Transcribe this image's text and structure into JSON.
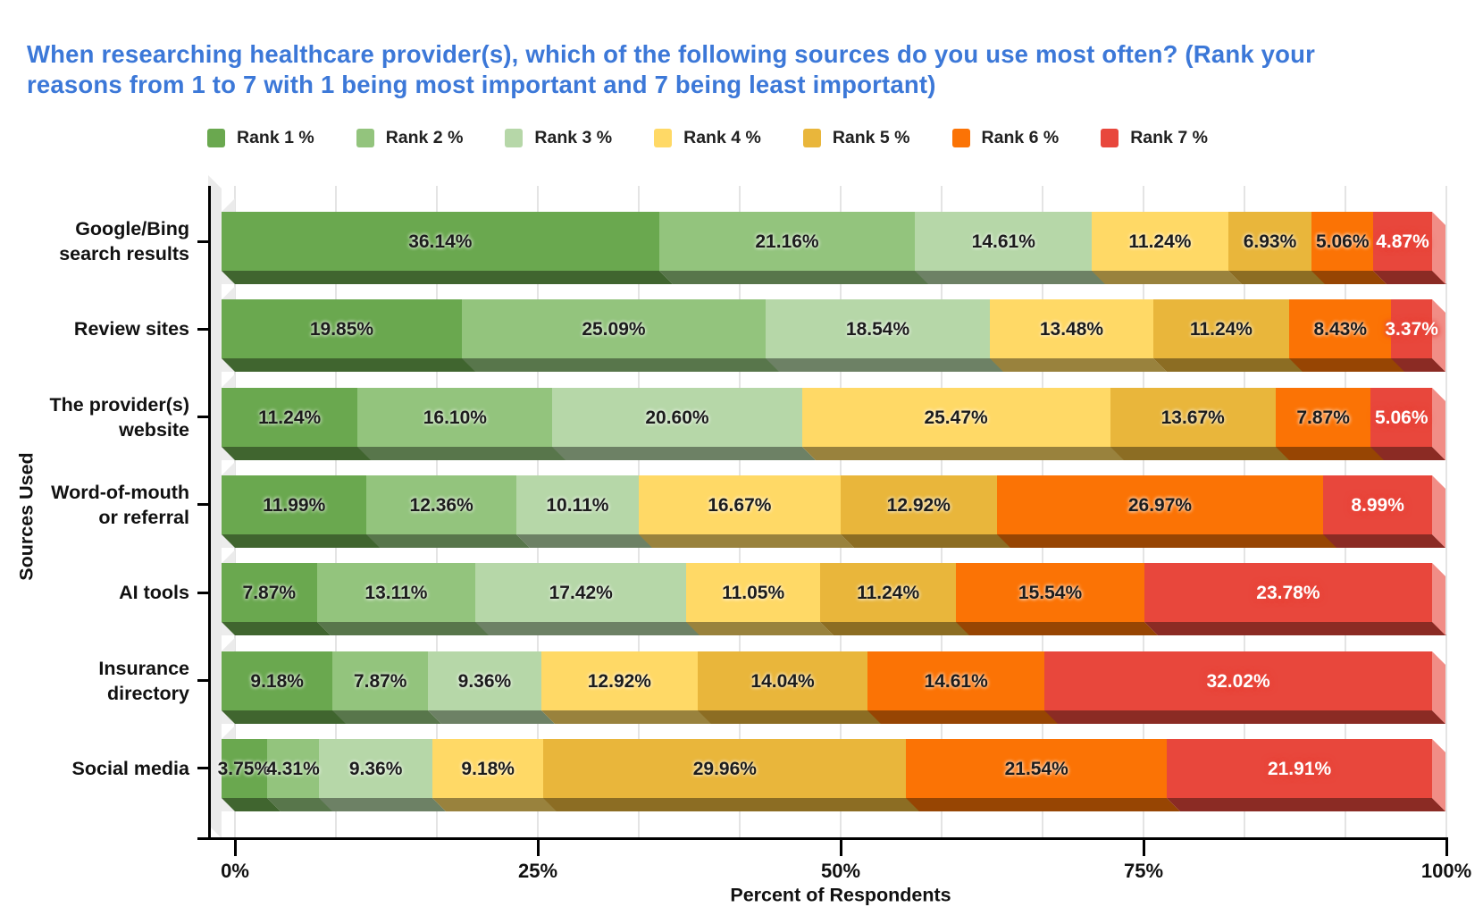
{
  "title": "When researching healthcare provider(s), which of the following sources do you use most often? (Rank your reasons from 1 to 7 with 1 being most important and 7 being least important)",
  "title_color": "#3c78d8",
  "legend": [
    {
      "label": "Rank 1 %",
      "color": "#6aa84f"
    },
    {
      "label": "Rank 2 %",
      "color": "#93c47d"
    },
    {
      "label": "Rank 3 %",
      "color": "#b6d7a8"
    },
    {
      "label": "Rank 4 %",
      "color": "#ffd966"
    },
    {
      "label": "Rank 5 %",
      "color": "#e9b63b"
    },
    {
      "label": "Rank 6 %",
      "color": "#fb7305"
    },
    {
      "label": "Rank 7 %",
      "color": "#e8473c"
    }
  ],
  "chart_data": {
    "type": "bar",
    "stacked": true,
    "orientation": "horizontal",
    "effect": "3d",
    "title": "When researching healthcare provider(s), which of the following sources do you use most often? (Rank your reasons from 1 to 7 with 1 being most important and 7 being least important)",
    "xlabel": "Percent of Respondents",
    "ylabel": "Sources Used",
    "xlim": [
      0,
      100
    ],
    "x_ticks": [
      "0%",
      "25%",
      "50%",
      "75%",
      "100%"
    ],
    "grid": true,
    "grid_divisions": 12,
    "legend_position": "top",
    "categories": [
      "Google/Bing\nsearch results",
      "Review sites",
      "The provider(s)\nwebsite",
      "Word-of-mouth\nor referral",
      "AI tools",
      "Insurance\ndirectory",
      "Social media"
    ],
    "series": [
      {
        "name": "Rank 1 %",
        "color": "#6aa84f",
        "text_color": "#1c1c1c",
        "values": [
          36.14,
          19.85,
          11.24,
          11.99,
          7.87,
          9.18,
          3.75
        ]
      },
      {
        "name": "Rank 2 %",
        "color": "#93c47d",
        "text_color": "#1c1c1c",
        "values": [
          21.16,
          25.09,
          16.1,
          12.36,
          13.11,
          7.87,
          4.31
        ]
      },
      {
        "name": "Rank 3 %",
        "color": "#b6d7a8",
        "text_color": "#1c1c1c",
        "values": [
          14.61,
          18.54,
          20.6,
          10.11,
          17.42,
          9.36,
          9.36
        ]
      },
      {
        "name": "Rank 4 %",
        "color": "#ffd966",
        "text_color": "#1c1c1c",
        "values": [
          11.24,
          13.48,
          25.47,
          16.67,
          11.05,
          12.92,
          9.18
        ]
      },
      {
        "name": "Rank 5 %",
        "color": "#e9b63b",
        "text_color": "#1c1c1c",
        "values": [
          6.93,
          11.24,
          13.67,
          12.92,
          11.24,
          14.04,
          29.96
        ]
      },
      {
        "name": "Rank 6 %",
        "color": "#fb7305",
        "text_color": "#1c1c1c",
        "values": [
          5.06,
          8.43,
          7.87,
          26.97,
          15.54,
          14.61,
          21.54
        ]
      },
      {
        "name": "Rank 7 %",
        "color": "#e8473c",
        "text_color": "#ffffff",
        "values": [
          4.87,
          3.37,
          5.06,
          8.99,
          23.78,
          32.02,
          21.91
        ]
      }
    ],
    "value_suffix": "%"
  }
}
